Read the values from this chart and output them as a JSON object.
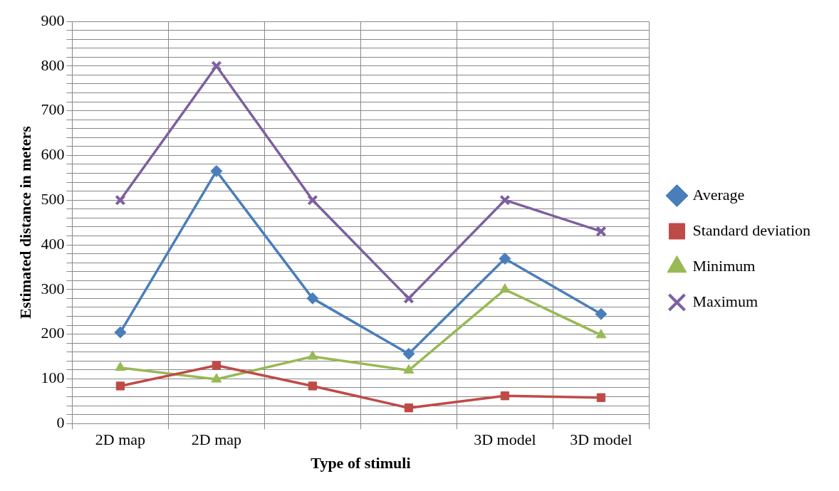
{
  "chart_data": {
    "type": "line",
    "xlabel": "Type of stimuli",
    "ylabel": "Estimated distance in meters",
    "categories": [
      "2D map",
      "2D map",
      null,
      null,
      "3D model",
      "3D model"
    ],
    "series": [
      {
        "name": "Average",
        "color": "#4a7ebb",
        "marker": "diamond",
        "values": [
          204,
          565,
          280,
          156,
          369,
          245
        ]
      },
      {
        "name": "Standard deviation",
        "color": "#be4b48",
        "marker": "square",
        "values": [
          84,
          130,
          84,
          35,
          62,
          58
        ]
      },
      {
        "name": "Minimum",
        "color": "#98b954",
        "marker": "triangle",
        "values": [
          125,
          99,
          150,
          119,
          300,
          198
        ]
      },
      {
        "name": "Maximum",
        "color": "#7d60a0",
        "marker": "cross",
        "values": [
          500,
          800,
          500,
          280,
          500,
          430
        ]
      }
    ],
    "ylim": [
      0,
      900
    ],
    "yticks": [
      0,
      {
        "value": 20,
        "label": null
      },
      {
        "value": 40,
        "label": null
      },
      {
        "value": 60,
        "label": null
      },
      {
        "value": 80,
        "label": null
      },
      100,
      {
        "value": 120,
        "label": null
      },
      {
        "value": 140,
        "label": null
      },
      {
        "value": 160,
        "label": null
      },
      {
        "value": 180,
        "label": null
      },
      200,
      {
        "value": 220,
        "label": null
      },
      {
        "value": 240,
        "label": null
      },
      {
        "value": 260,
        "label": null
      },
      {
        "value": 280,
        "label": null
      },
      300,
      {
        "value": 320,
        "label": null
      },
      {
        "value": 340,
        "label": null
      },
      {
        "value": 360,
        "label": null
      },
      {
        "value": 380,
        "label": null
      },
      400,
      {
        "value": 420,
        "label": null
      },
      {
        "value": 440,
        "label": null
      },
      {
        "value": 460,
        "label": null
      },
      {
        "value": 480,
        "label": null
      },
      500,
      {
        "value": 520,
        "label": null
      },
      {
        "value": 540,
        "label": null
      },
      {
        "value": 560,
        "label": null
      },
      {
        "value": 580,
        "label": null
      },
      600,
      {
        "value": 620,
        "label": null
      },
      {
        "value": 640,
        "label": null
      },
      {
        "value": 660,
        "label": null
      },
      {
        "value": 680,
        "label": null
      },
      700,
      {
        "value": 720,
        "label": null
      },
      {
        "value": 740,
        "label": null
      },
      {
        "value": 760,
        "label": null
      },
      {
        "value": 780,
        "label": null
      },
      800,
      {
        "value": 820,
        "label": null
      },
      {
        "value": 840,
        "label": null
      },
      {
        "value": 860,
        "label": null
      },
      {
        "value": 880,
        "label": null
      },
      900
    ],
    "grid": true,
    "legend": "right",
    "line_style": "solid"
  }
}
